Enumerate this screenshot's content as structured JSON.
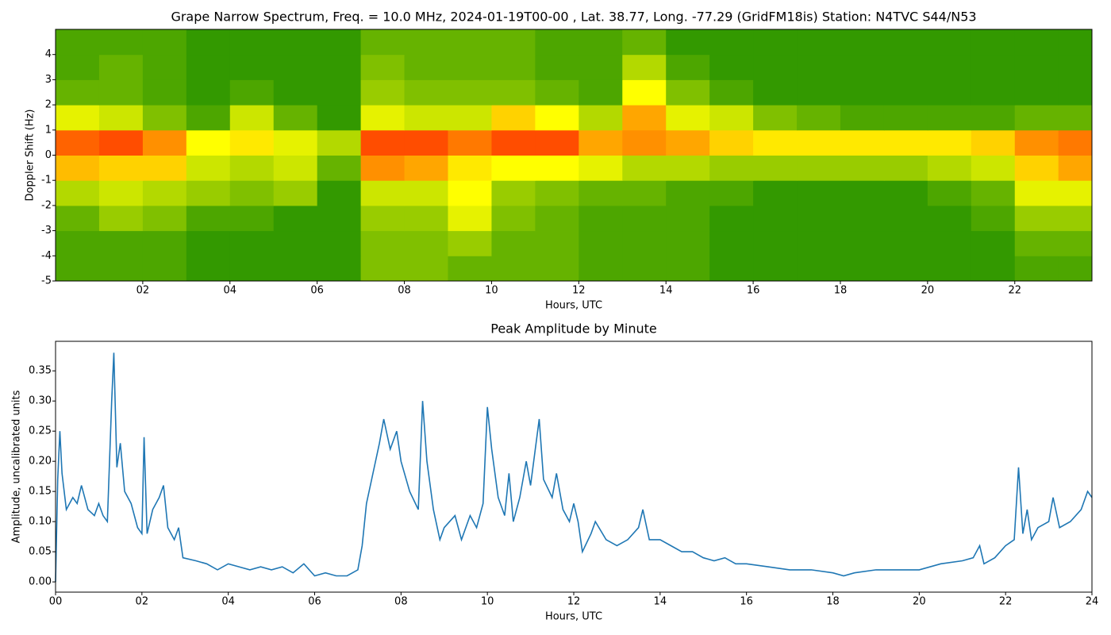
{
  "chart_data": [
    {
      "type": "heatmap",
      "title": "Grape Narrow Spectrum, Freq. = 10.0 MHz, 2024-01-19T00-00 , Lat.  38.77, Long. -77.29 (GridFM18is) Station: N4TVC S44/N53",
      "x_label": "Hours, UTC",
      "y_label": "Doppler Shift (Hz)",
      "xlim": [
        0,
        23.77
      ],
      "ylim": [
        -5,
        5
      ],
      "xticks": [
        {
          "value": 2,
          "label": "02"
        },
        {
          "value": 4,
          "label": "04"
        },
        {
          "value": 6,
          "label": "06"
        },
        {
          "value": 8,
          "label": "08"
        },
        {
          "value": 10,
          "label": "10"
        },
        {
          "value": 12,
          "label": "12"
        },
        {
          "value": 14,
          "label": "14"
        },
        {
          "value": 16,
          "label": "16"
        },
        {
          "value": 18,
          "label": "18"
        },
        {
          "value": 20,
          "label": "20"
        },
        {
          "value": 22,
          "label": "22"
        }
      ],
      "yticks": [
        -5,
        -4,
        -3,
        -2,
        -1,
        0,
        1,
        2,
        3,
        4
      ],
      "xbins": [
        0,
        1,
        2,
        3,
        4,
        5,
        6,
        7,
        8,
        9,
        10,
        11,
        12,
        13,
        14,
        15,
        16,
        17,
        18,
        19,
        20,
        21,
        22,
        23,
        23.77
      ],
      "ybins": [
        -5,
        -4,
        -3,
        -2,
        -1,
        0,
        1,
        2,
        3,
        4,
        5
      ],
      "zlim": [
        0,
        1
      ],
      "colors": [
        "#008000",
        "#ffff00",
        "#ff2000"
      ],
      "z": [
        [
          0.15,
          0.15,
          0.15,
          0.1,
          0.1,
          0.1,
          0.1,
          0.25,
          0.25,
          0.2,
          0.2,
          0.2,
          0.15,
          0.15,
          0.15,
          0.1,
          0.1,
          0.1,
          0.1,
          0.1,
          0.1,
          0.1,
          0.15,
          0.15
        ],
        [
          0.15,
          0.15,
          0.15,
          0.1,
          0.1,
          0.1,
          0.1,
          0.25,
          0.25,
          0.3,
          0.2,
          0.2,
          0.15,
          0.15,
          0.15,
          0.1,
          0.1,
          0.1,
          0.1,
          0.1,
          0.1,
          0.1,
          0.2,
          0.2
        ],
        [
          0.2,
          0.3,
          0.25,
          0.15,
          0.15,
          0.1,
          0.1,
          0.3,
          0.3,
          0.45,
          0.25,
          0.2,
          0.15,
          0.15,
          0.15,
          0.1,
          0.1,
          0.1,
          0.1,
          0.1,
          0.1,
          0.15,
          0.3,
          0.3
        ],
        [
          0.35,
          0.4,
          0.35,
          0.3,
          0.25,
          0.3,
          0.1,
          0.4,
          0.4,
          0.5,
          0.3,
          0.25,
          0.2,
          0.2,
          0.15,
          0.15,
          0.1,
          0.1,
          0.1,
          0.1,
          0.15,
          0.2,
          0.45,
          0.45
        ],
        [
          0.65,
          0.6,
          0.6,
          0.4,
          0.35,
          0.4,
          0.2,
          0.75,
          0.7,
          0.55,
          0.5,
          0.5,
          0.45,
          0.35,
          0.35,
          0.3,
          0.3,
          0.3,
          0.3,
          0.3,
          0.35,
          0.4,
          0.6,
          0.7
        ],
        [
          0.85,
          0.9,
          0.75,
          0.5,
          0.55,
          0.45,
          0.35,
          0.9,
          0.9,
          0.8,
          0.9,
          0.9,
          0.7,
          0.75,
          0.7,
          0.6,
          0.55,
          0.55,
          0.55,
          0.55,
          0.55,
          0.6,
          0.75,
          0.8
        ],
        [
          0.45,
          0.4,
          0.25,
          0.15,
          0.4,
          0.2,
          0.1,
          0.45,
          0.4,
          0.4,
          0.6,
          0.5,
          0.35,
          0.7,
          0.45,
          0.4,
          0.25,
          0.2,
          0.15,
          0.15,
          0.15,
          0.15,
          0.2,
          0.2
        ],
        [
          0.2,
          0.2,
          0.15,
          0.1,
          0.15,
          0.1,
          0.1,
          0.3,
          0.25,
          0.25,
          0.25,
          0.2,
          0.15,
          0.5,
          0.25,
          0.15,
          0.1,
          0.1,
          0.1,
          0.1,
          0.1,
          0.1,
          0.1,
          0.1
        ],
        [
          0.15,
          0.2,
          0.15,
          0.1,
          0.1,
          0.1,
          0.1,
          0.25,
          0.2,
          0.2,
          0.2,
          0.15,
          0.15,
          0.35,
          0.15,
          0.1,
          0.1,
          0.1,
          0.1,
          0.1,
          0.1,
          0.1,
          0.1,
          0.1
        ],
        [
          0.15,
          0.15,
          0.15,
          0.1,
          0.1,
          0.1,
          0.1,
          0.2,
          0.2,
          0.2,
          0.2,
          0.15,
          0.15,
          0.2,
          0.1,
          0.1,
          0.1,
          0.1,
          0.1,
          0.1,
          0.1,
          0.1,
          0.1,
          0.1
        ]
      ]
    },
    {
      "type": "line",
      "title": "Peak Amplitude by Minute",
      "x_label": "Hours, UTC",
      "y_label": "Amplitude, uncalibrated units",
      "xlim": [
        0,
        24
      ],
      "ylim": [
        -0.017,
        0.399
      ],
      "xticks": [
        {
          "value": 0,
          "label": "00"
        },
        {
          "value": 2,
          "label": "02"
        },
        {
          "value": 4,
          "label": "04"
        },
        {
          "value": 6,
          "label": "06"
        },
        {
          "value": 8,
          "label": "08"
        },
        {
          "value": 10,
          "label": "10"
        },
        {
          "value": 12,
          "label": "12"
        },
        {
          "value": 14,
          "label": "14"
        },
        {
          "value": 16,
          "label": "16"
        },
        {
          "value": 18,
          "label": "18"
        },
        {
          "value": 20,
          "label": "20"
        },
        {
          "value": 22,
          "label": "22"
        },
        {
          "value": 24,
          "label": "24"
        }
      ],
      "yticks": [
        {
          "value": 0,
          "label": "0.00"
        },
        {
          "value": 0.05,
          "label": "0.05"
        },
        {
          "value": 0.1,
          "label": "0.10"
        },
        {
          "value": 0.15,
          "label": "0.15"
        },
        {
          "value": 0.2,
          "label": "0.20"
        },
        {
          "value": 0.25,
          "label": "0.25"
        },
        {
          "value": 0.3,
          "label": "0.30"
        },
        {
          "value": 0.35,
          "label": "0.35"
        }
      ],
      "color": "#1f77b4",
      "x": [
        0,
        0.05,
        0.1,
        0.15,
        0.25,
        0.4,
        0.5,
        0.6,
        0.75,
        0.9,
        1.0,
        1.1,
        1.2,
        1.3,
        1.35,
        1.42,
        1.5,
        1.6,
        1.75,
        1.9,
        2.0,
        2.05,
        2.12,
        2.25,
        2.4,
        2.5,
        2.6,
        2.75,
        2.85,
        2.95,
        3.25,
        3.5,
        3.75,
        4.0,
        4.25,
        4.5,
        4.75,
        5.0,
        5.25,
        5.5,
        5.75,
        6.0,
        6.25,
        6.5,
        6.75,
        7.0,
        7.1,
        7.2,
        7.35,
        7.5,
        7.6,
        7.75,
        7.9,
        8.0,
        8.2,
        8.4,
        8.5,
        8.6,
        8.75,
        8.9,
        9.0,
        9.25,
        9.4,
        9.6,
        9.75,
        9.9,
        10.0,
        10.1,
        10.25,
        10.4,
        10.5,
        10.6,
        10.75,
        10.9,
        11.0,
        11.2,
        11.3,
        11.5,
        11.6,
        11.75,
        11.9,
        12.0,
        12.1,
        12.2,
        12.4,
        12.5,
        12.75,
        13.0,
        13.25,
        13.5,
        13.6,
        13.75,
        14.0,
        14.25,
        14.5,
        14.75,
        15.0,
        15.25,
        15.5,
        15.75,
        16.0,
        16.5,
        17.0,
        17.5,
        18.0,
        18.25,
        18.5,
        19.0,
        19.5,
        20.0,
        20.5,
        21.0,
        21.25,
        21.4,
        21.5,
        21.75,
        22.0,
        22.2,
        22.3,
        22.4,
        22.5,
        22.6,
        22.75,
        23.0,
        23.1,
        23.25,
        23.5,
        23.75,
        23.9,
        24.0
      ],
      "values": [
        0.0,
        0.17,
        0.25,
        0.18,
        0.12,
        0.14,
        0.13,
        0.16,
        0.12,
        0.11,
        0.13,
        0.11,
        0.1,
        0.3,
        0.38,
        0.19,
        0.23,
        0.15,
        0.13,
        0.09,
        0.08,
        0.24,
        0.08,
        0.12,
        0.14,
        0.16,
        0.09,
        0.07,
        0.09,
        0.04,
        0.035,
        0.03,
        0.02,
        0.03,
        0.025,
        0.02,
        0.025,
        0.02,
        0.025,
        0.015,
        0.03,
        0.01,
        0.015,
        0.01,
        0.01,
        0.02,
        0.06,
        0.13,
        0.18,
        0.23,
        0.27,
        0.22,
        0.25,
        0.2,
        0.15,
        0.12,
        0.3,
        0.2,
        0.12,
        0.07,
        0.09,
        0.11,
        0.07,
        0.11,
        0.09,
        0.13,
        0.29,
        0.22,
        0.14,
        0.11,
        0.18,
        0.1,
        0.14,
        0.2,
        0.16,
        0.27,
        0.17,
        0.14,
        0.18,
        0.12,
        0.1,
        0.13,
        0.1,
        0.05,
        0.08,
        0.1,
        0.07,
        0.06,
        0.07,
        0.09,
        0.12,
        0.07,
        0.07,
        0.06,
        0.05,
        0.05,
        0.04,
        0.035,
        0.04,
        0.03,
        0.03,
        0.025,
        0.02,
        0.02,
        0.015,
        0.01,
        0.015,
        0.02,
        0.02,
        0.02,
        0.03,
        0.035,
        0.04,
        0.06,
        0.03,
        0.04,
        0.06,
        0.07,
        0.19,
        0.08,
        0.12,
        0.07,
        0.09,
        0.1,
        0.14,
        0.09,
        0.1,
        0.12,
        0.15,
        0.14
      ]
    }
  ]
}
